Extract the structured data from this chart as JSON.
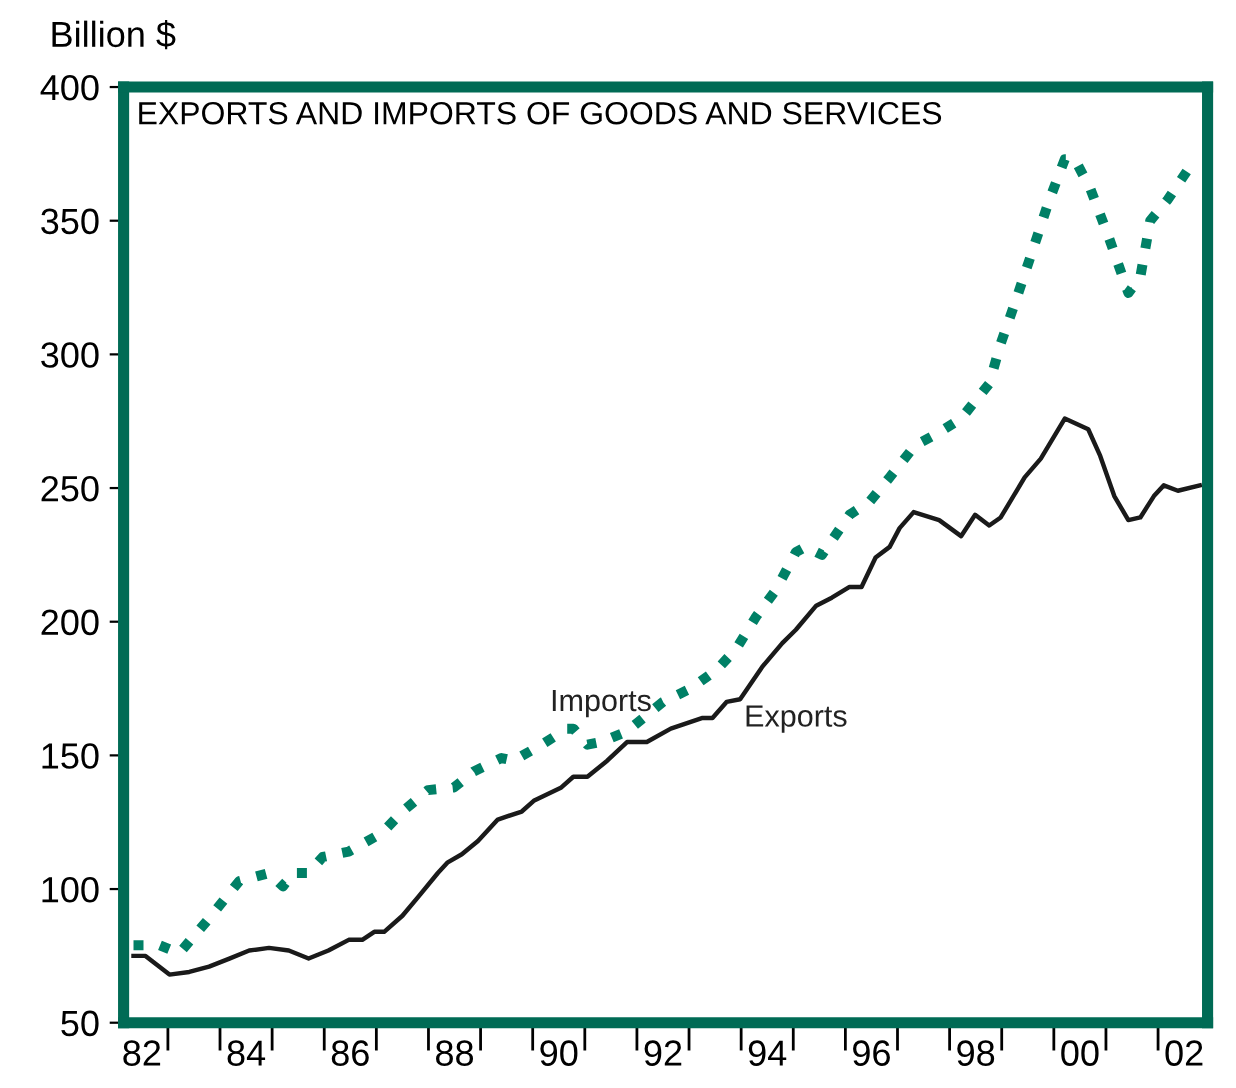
{
  "chart_data": {
    "type": "line",
    "title": "EXPORTS AND IMPORTS OF GOODS AND SERVICES",
    "ylabel": "Billion $",
    "xlim": [
      1981.65,
      2002.45
    ],
    "ylim": [
      50,
      400
    ],
    "yticks": [
      50,
      100,
      150,
      200,
      250,
      300,
      350,
      400
    ],
    "xticks": [
      {
        "value": 1982.5,
        "label": null
      },
      {
        "value": 1983.5,
        "label": null
      },
      {
        "value": 1984.5,
        "label": null
      },
      {
        "value": 1985.5,
        "label": null
      },
      {
        "value": 1986.5,
        "label": null
      },
      {
        "value": 1987.5,
        "label": null
      },
      {
        "value": 1988.5,
        "label": null
      },
      {
        "value": 1989.5,
        "label": null
      },
      {
        "value": 1990.5,
        "label": null
      },
      {
        "value": 1991.5,
        "label": null
      },
      {
        "value": 1992.5,
        "label": null
      },
      {
        "value": 1993.5,
        "label": null
      },
      {
        "value": 1994.5,
        "label": null
      },
      {
        "value": 1995.5,
        "label": null
      },
      {
        "value": 1996.5,
        "label": null
      },
      {
        "value": 1997.5,
        "label": null
      },
      {
        "value": 1998.5,
        "label": null
      },
      {
        "value": 1999.5,
        "label": null
      },
      {
        "value": 2000.5,
        "label": null
      },
      {
        "value": 2001.5,
        "label": null
      },
      {
        "value": 1982,
        "label": "82"
      },
      {
        "value": 1984,
        "label": "84"
      },
      {
        "value": 1986,
        "label": "86"
      },
      {
        "value": 1988,
        "label": "88"
      },
      {
        "value": 1990,
        "label": "90"
      },
      {
        "value": 1992,
        "label": "92"
      },
      {
        "value": 1994,
        "label": "94"
      },
      {
        "value": 1996,
        "label": "96"
      },
      {
        "value": 1998,
        "label": "98"
      },
      {
        "value": 2000,
        "label": "00"
      },
      {
        "value": 2002,
        "label": "02"
      }
    ],
    "grid": false,
    "legend": false,
    "marker": "none",
    "series": [
      {
        "name": "Imports",
        "color": "#008066",
        "line_style": "dotted",
        "x": [
          1981.84,
          1982.34,
          1982.72,
          1983.29,
          1983.87,
          1984.44,
          1984.71,
          1984.9,
          1985.2,
          1985.47,
          1985.97,
          1986.61,
          1987.0,
          1987.49,
          1987.99,
          1988.37,
          1988.9,
          1989.13,
          1989.67,
          1990.16,
          1990.28,
          1990.55,
          1990.81,
          1991.31,
          1992.0,
          1992.53,
          1993.03,
          1993.41,
          1993.79,
          1994.17,
          1994.55,
          1994.74,
          1995.05,
          1995.58,
          1995.97,
          1996.35,
          1996.84,
          1997.23,
          1997.72,
          1998.26,
          1998.48,
          1998.75,
          1999.06,
          1999.4,
          1999.71,
          1999.9,
          2000.2,
          2000.55,
          2000.93,
          2001.16,
          2001.35,
          2001.69,
          2002.07,
          2002.3
        ],
        "values": [
          79,
          79,
          76,
          89,
          103,
          106,
          101,
          106,
          106,
          112,
          114,
          121,
          129,
          137,
          138,
          144,
          149,
          148,
          154,
          160,
          160,
          154,
          155,
          159,
          170,
          175,
          182,
          190,
          202,
          212,
          226,
          228,
          225,
          240,
          245,
          254,
          266,
          270,
          276,
          289,
          304,
          319,
          337,
          357,
          373,
          373,
          362,
          344,
          323,
          329,
          350,
          358,
          369,
          372
        ]
      },
      {
        "name": "Exports",
        "color": "#1a1a1a",
        "line_style": "solid",
        "x": [
          1981.84,
          1982.07,
          1982.53,
          1982.91,
          1983.29,
          1983.68,
          1984.06,
          1984.44,
          1984.82,
          1985.2,
          1985.58,
          1985.97,
          1986.23,
          1986.46,
          1986.65,
          1987.0,
          1987.3,
          1987.68,
          1987.87,
          1988.14,
          1988.45,
          1988.83,
          1989.29,
          1989.52,
          1990.05,
          1990.28,
          1990.55,
          1990.93,
          1991.31,
          1991.69,
          1992.15,
          1992.76,
          1992.95,
          1993.22,
          1993.48,
          1993.9,
          1994.29,
          1994.55,
          1994.94,
          1995.24,
          1995.58,
          1995.81,
          1996.08,
          1996.35,
          1996.54,
          1996.81,
          1997.3,
          1997.72,
          1997.99,
          1998.26,
          1998.48,
          1998.94,
          1999.25,
          1999.71,
          2000.16,
          2000.39,
          2000.66,
          2000.93,
          2001.16,
          2001.42,
          2001.61,
          2001.88,
          2002.3
        ],
        "values": [
          75,
          75,
          68,
          69,
          71,
          74,
          77,
          78,
          77,
          74,
          77,
          81,
          81,
          84,
          84,
          90,
          97,
          106,
          110,
          113,
          118,
          126,
          129,
          133,
          138,
          142,
          142,
          148,
          155,
          155,
          160,
          164,
          164,
          170,
          171,
          183,
          192,
          197,
          206,
          209,
          213,
          213,
          224,
          228,
          235,
          241,
          238,
          232,
          240,
          236,
          239,
          254,
          261,
          276,
          272,
          262,
          247,
          238,
          239,
          247,
          251,
          249,
          251
        ]
      }
    ]
  }
}
